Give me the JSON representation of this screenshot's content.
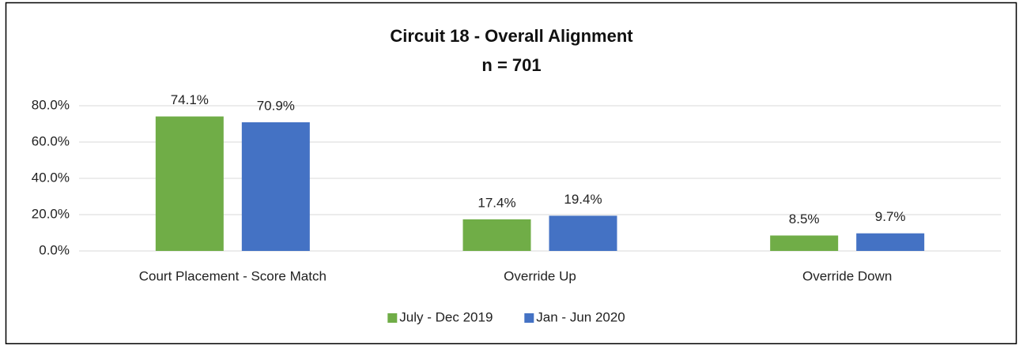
{
  "chart_data": {
    "type": "bar",
    "title": "Circuit 18 - Overall Alignment",
    "subtitle": "n = 701",
    "categories": [
      "Court Placement  - Score Match",
      "Override Up",
      "Override Down"
    ],
    "series": [
      {
        "name": "July - Dec 2019",
        "color": "#70ad47",
        "values": [
          74.1,
          17.4,
          8.5
        ],
        "value_labels": [
          "74.1%",
          "17.4%",
          "8.5%"
        ]
      },
      {
        "name": "Jan - Jun 2020",
        "color": "#4472c4",
        "values": [
          70.9,
          19.4,
          9.7
        ],
        "value_labels": [
          "70.9%",
          "19.4%",
          "9.7%"
        ]
      }
    ],
    "ylim": [
      0,
      80
    ],
    "yticks": [
      {
        "value": 0,
        "label": "0.0%"
      },
      {
        "value": 20,
        "label": "20.0%"
      },
      {
        "value": 40,
        "label": "40.0%"
      },
      {
        "value": 60,
        "label": "60.0%"
      },
      {
        "value": 80,
        "label": "80.0%"
      }
    ],
    "grid": true,
    "legend": "bottom"
  }
}
